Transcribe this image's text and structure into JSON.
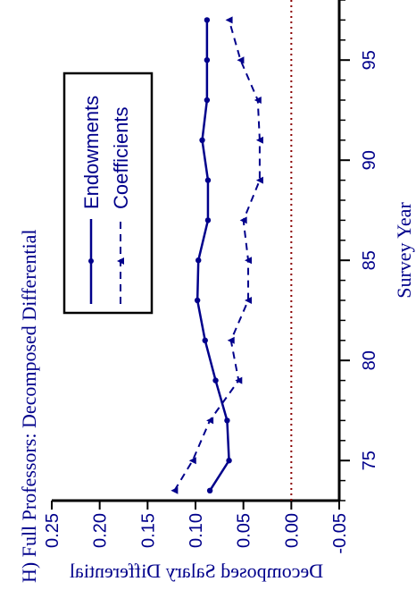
{
  "chart_data": {
    "type": "line",
    "title": "H)  Full Professors:  Decomposed Differential",
    "xlabel": "Survey Year",
    "ylabel": "Decomposed Salary Differential",
    "xlim": [
      73,
      98
    ],
    "ylim": [
      -0.05,
      0.25
    ],
    "x_ticks": [
      75,
      80,
      85,
      90,
      95
    ],
    "y_ticks": [
      -0.05,
      0.0,
      0.05,
      0.1,
      0.15,
      0.2,
      0.25
    ],
    "y_tick_labels": [
      "-0.05",
      "0.00",
      "0.05",
      "0.10",
      "0.15",
      "0.20",
      "0.25"
    ],
    "reference_line": {
      "y": 0,
      "style": "dotted",
      "color": "#8b0000"
    },
    "legend_position": "top-right",
    "grid": false,
    "orientation": "rotated-90-ccw",
    "series": [
      {
        "name": "Endowments",
        "style": "solid",
        "color": "#00008b",
        "x": [
          73.5,
          75,
          77,
          79,
          81,
          83,
          85,
          87,
          89,
          91,
          93,
          95,
          97
        ],
        "y": [
          0.085,
          0.065,
          0.067,
          0.079,
          0.09,
          0.098,
          0.097,
          0.087,
          0.087,
          0.093,
          0.088,
          0.088,
          0.088
        ]
      },
      {
        "name": "Coefficients",
        "style": "dashed",
        "color": "#00008b",
        "x": [
          73.5,
          75,
          77,
          79,
          81,
          83,
          85,
          87,
          89,
          91,
          93,
          95,
          97
        ],
        "y": [
          0.122,
          0.103,
          0.085,
          0.055,
          0.063,
          0.045,
          0.045,
          0.05,
          0.033,
          0.033,
          0.035,
          0.053,
          0.065
        ]
      }
    ]
  }
}
